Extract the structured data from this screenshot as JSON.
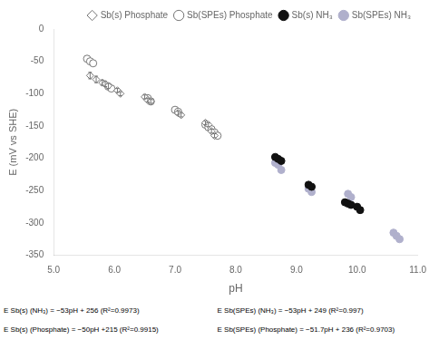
{
  "chart_data": {
    "type": "scatter",
    "xlabel": "pH",
    "ylabel": "E (mV vs SHE)",
    "xlim": [
      5.0,
      11.0
    ],
    "ylim": [
      -350,
      0
    ],
    "xticks": [
      {
        "value": 5.0,
        "label": "5.0"
      },
      {
        "value": 6.0,
        "label": "6.0"
      },
      {
        "value": 7.0,
        "label": "7.0"
      },
      {
        "value": 8.0,
        "label": "8.0"
      },
      {
        "value": 9.0,
        "label": "9.0"
      },
      {
        "value": 10.0,
        "label": "10.0"
      },
      {
        "value": 11.0,
        "label": "11.0"
      }
    ],
    "yticks": [
      0,
      -50,
      -100,
      -150,
      -200,
      -250,
      -300,
      -350
    ],
    "grid": false,
    "legend": "upper right",
    "series": [
      {
        "name": "Sb(s) Phosphate",
        "color": "#777777",
        "marker": "open_diamond",
        "x": [
          5.6,
          5.7,
          5.8,
          5.85,
          5.9,
          6.05,
          6.1,
          6.5,
          6.55,
          6.6,
          7.05,
          7.1,
          7.5,
          7.55,
          7.6,
          7.65
        ],
        "values": [
          -72,
          -78,
          -83,
          -85,
          -88,
          -95,
          -100,
          -105,
          -110,
          -112,
          -130,
          -133,
          -145,
          -148,
          -158,
          -165
        ],
        "yerr": [
          5,
          5,
          4,
          4,
          4,
          3,
          3,
          3,
          3,
          3,
          3,
          3,
          3,
          3,
          3,
          3
        ]
      },
      {
        "name": "Sb(SPEs) Phosphate",
        "color": "#777777",
        "marker": "open_circle",
        "x": [
          5.55,
          5.6,
          5.65,
          5.9,
          5.95,
          6.55,
          6.6,
          7.0,
          7.05,
          7.5,
          7.55,
          7.6,
          7.65,
          7.7
        ],
        "values": [
          -46,
          -50,
          -53,
          -89,
          -92,
          -107,
          -112,
          -125,
          -128,
          -148,
          -152,
          -155,
          -160,
          -165
        ]
      },
      {
        "name": "Sb(s) NH₃",
        "color": "#111111",
        "marker": "circle",
        "x": [
          8.65,
          8.7,
          8.75,
          9.2,
          9.25,
          9.8,
          9.85,
          9.9,
          10.0,
          10.05
        ],
        "values": [
          -198,
          -201,
          -204,
          -241,
          -244,
          -268,
          -270,
          -272,
          -275,
          -280
        ]
      },
      {
        "name": "Sb(SPEs) NH₃",
        "color": "#b0b0cc",
        "marker": "circle",
        "x": [
          8.65,
          8.7,
          8.75,
          9.2,
          9.25,
          9.85,
          9.9,
          10.6,
          10.65,
          10.7
        ],
        "values": [
          -207,
          -210,
          -218,
          -247,
          -252,
          -255,
          -260,
          -315,
          -320,
          -325
        ]
      }
    ],
    "annotations": [
      "E Sb(s) (NH₃) = −53pH + 256 (R²=0.9973)",
      "E Sb(s) (Phosphate) = −50pH +215 (R²=0.9915)",
      "E Sb(SPEs) (NH₃) = −53pH + 249 (R²=0.997)",
      "E Sb(SPEs) (Phosphate) = −51.7pH + 236 (R²=0.9703)"
    ]
  }
}
